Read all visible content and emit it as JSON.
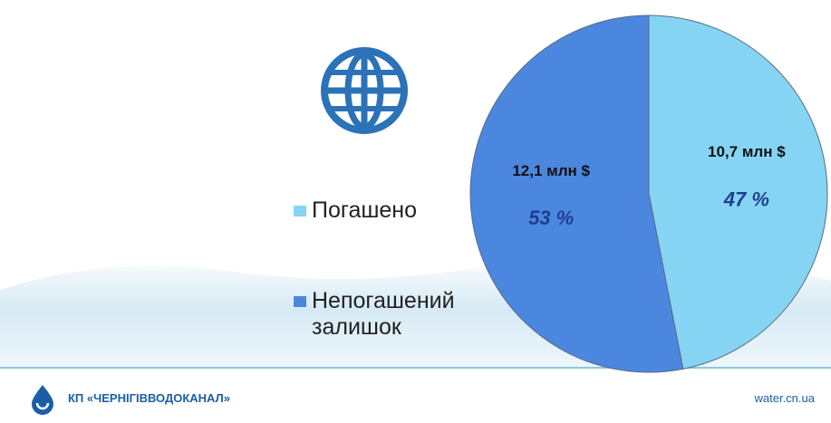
{
  "chart_data": {
    "type": "pie",
    "categories": [
      "Погашено",
      "Непогашений залишок"
    ],
    "values": [
      10.7,
      12.1
    ],
    "value_labels": [
      "10,7 млн $",
      "12,1 млн $"
    ],
    "percents": [
      47,
      53
    ],
    "percent_labels": [
      "47 %",
      "53 %"
    ],
    "colors": [
      "#86d4f4",
      "#4c87df"
    ]
  },
  "footer": {
    "organization": "КП «ЧЕРНІГІВВОДОКАНАЛ»",
    "website": "water.cn.ua"
  }
}
